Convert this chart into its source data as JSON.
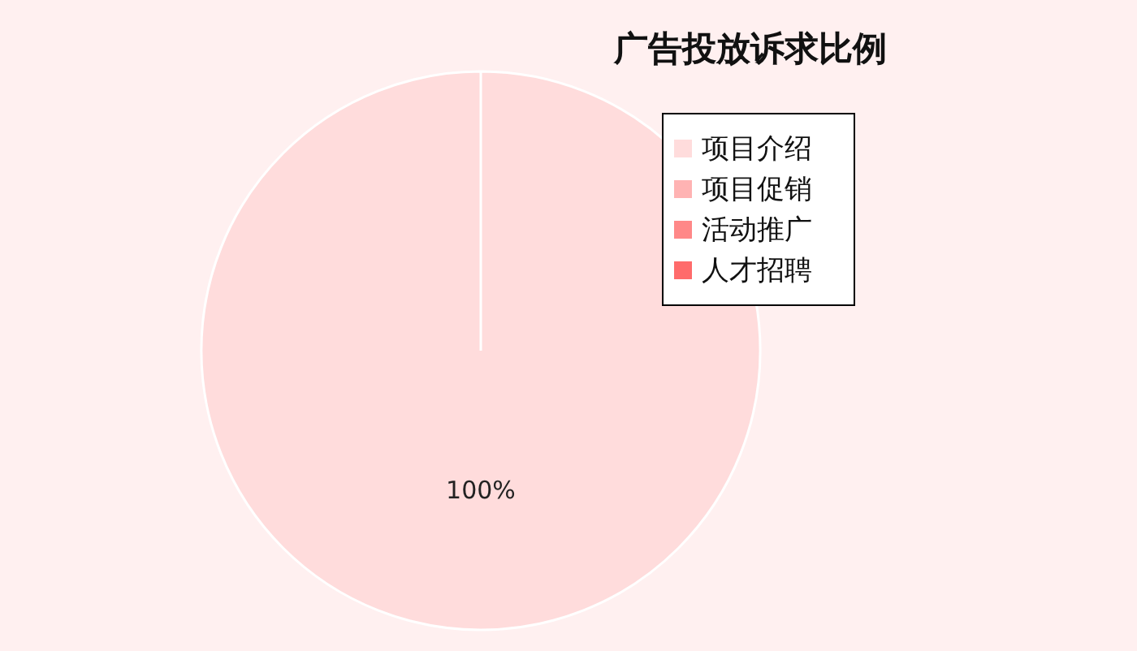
{
  "chart_data": {
    "type": "pie",
    "title": "广告投放诉求比例",
    "categories": [
      "项目介绍",
      "项目促销",
      "活动推广",
      "人才招聘"
    ],
    "values": [
      100,
      0,
      0,
      0
    ],
    "colors": [
      "#ffdcdc",
      "#ffb3b3",
      "#ff8888",
      "#ff6b6b"
    ],
    "value_labels": [
      "100%",
      null,
      null,
      null
    ],
    "legend": "top right"
  }
}
